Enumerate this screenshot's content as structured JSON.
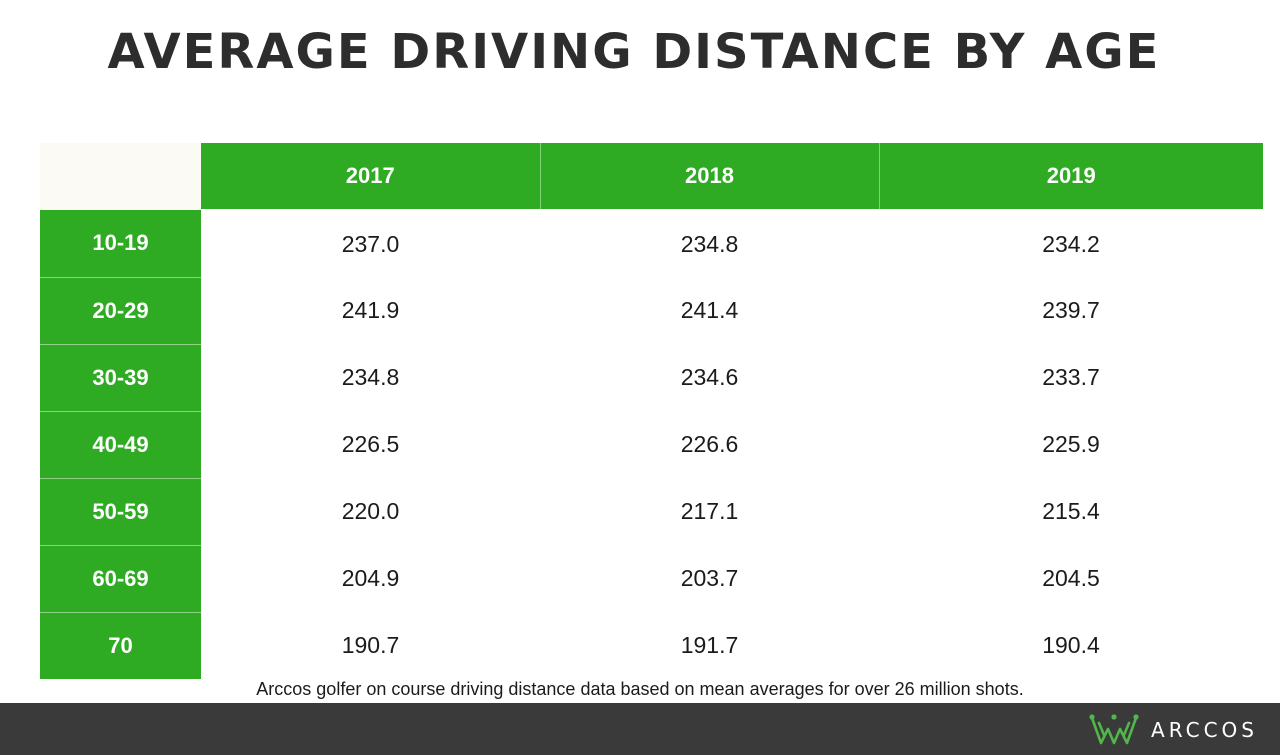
{
  "title": "AVERAGE DRIVING DISTANCE BY AGE",
  "footnote": "Arccos golfer on course driving distance data based on mean averages for over 26 million shots.",
  "brand": {
    "name": "ARCCOS",
    "logo_icon": "arccos-crown-logo-icon"
  },
  "colors": {
    "header_green": "#2eab22",
    "footer_bar": "#3a3a3a",
    "logo_green": "#52b64a",
    "text_dark": "#2d2d2d"
  },
  "chart_data": {
    "type": "table",
    "title": "AVERAGE DRIVING DISTANCE BY AGE",
    "columns": [
      "2017",
      "2018",
      "2019"
    ],
    "rows": [
      {
        "label": "10-19",
        "values": [
          "237.0",
          "234.8",
          "234.2"
        ]
      },
      {
        "label": "20-29",
        "values": [
          "241.9",
          "241.4",
          "239.7"
        ]
      },
      {
        "label": "30-39",
        "values": [
          "234.8",
          "234.6",
          "233.7"
        ]
      },
      {
        "label": "40-49",
        "values": [
          "226.5",
          "226.6",
          "225.9"
        ]
      },
      {
        "label": "50-59",
        "values": [
          "220.0",
          "217.1",
          "215.4"
        ]
      },
      {
        "label": "60-69",
        "values": [
          "204.9",
          "203.7",
          "204.5"
        ]
      },
      {
        "label": "70",
        "values": [
          "190.7",
          "191.7",
          "190.4"
        ]
      }
    ]
  }
}
